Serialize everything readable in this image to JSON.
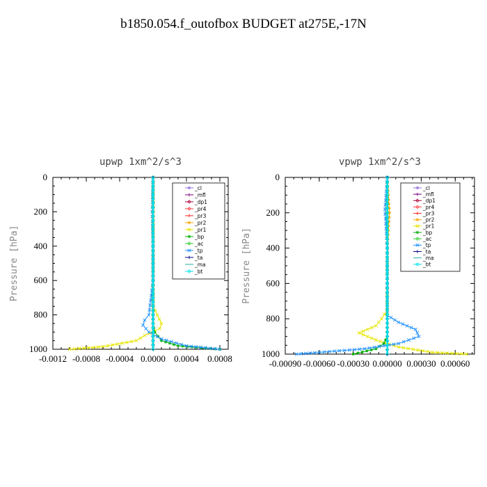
{
  "page": {
    "title": "b1850.054.f_outofbox  BUDGET at275E,-17N"
  },
  "chart_data": [
    {
      "type": "line",
      "title": "upwp  1xm^2/s^3",
      "ylabel": "Pressure [hPa]",
      "xlim": [
        -0.0012,
        0.0009
      ],
      "ylim": [
        0,
        1000
      ],
      "y_inverted": true,
      "xticks": [
        -0.0012,
        -0.0008,
        -0.0004,
        0.0,
        0.0004,
        0.0008
      ],
      "xtick_labels": [
        "-0.0012",
        "-0.0008",
        "-0.0004",
        "0.0000",
        "0.0004",
        "0.0008"
      ],
      "yticks": [
        0,
        200,
        400,
        600,
        800,
        1000
      ],
      "ytick_labels": [
        "0",
        "200",
        "400",
        "600",
        "800",
        "1000"
      ],
      "legend_position": "top-right",
      "series": [
        {
          "name": "_cl",
          "color": "#9370db",
          "marker": "star",
          "x": [
            0,
            0,
            0,
            0,
            0,
            0,
            0,
            0,
            0,
            0,
            0,
            0,
            0
          ],
          "y": [
            0,
            100,
            200,
            300,
            400,
            500,
            600,
            700,
            800,
            850,
            900,
            950,
            1000
          ]
        },
        {
          "name": "_mfl",
          "color": "#800080",
          "marker": "plus",
          "x": [
            0,
            0,
            0,
            0,
            0,
            0,
            0,
            0,
            0,
            0,
            0,
            0,
            0
          ],
          "y": [
            0,
            100,
            200,
            300,
            400,
            500,
            600,
            700,
            800,
            850,
            900,
            950,
            1000
          ]
        },
        {
          "name": "_dp1",
          "color": "#b0003a",
          "marker": "diamond",
          "x": [
            0,
            0,
            0,
            0,
            0,
            0,
            0,
            0,
            0,
            0,
            0,
            0,
            0
          ],
          "y": [
            0,
            100,
            200,
            300,
            400,
            500,
            600,
            700,
            800,
            850,
            900,
            950,
            1000
          ]
        },
        {
          "name": "_pr4",
          "color": "#ff4040",
          "marker": "diamond",
          "x": [
            0,
            0,
            0,
            0,
            0,
            0,
            0,
            0,
            0,
            0,
            0,
            0,
            0
          ],
          "y": [
            0,
            100,
            200,
            300,
            400,
            500,
            600,
            700,
            800,
            850,
            900,
            950,
            1000
          ]
        },
        {
          "name": "_pr3",
          "color": "#ff2020",
          "marker": "plus",
          "x": [
            0,
            0,
            0,
            0,
            0,
            0,
            0,
            0,
            0,
            0,
            0,
            0,
            0
          ],
          "y": [
            0,
            100,
            200,
            300,
            400,
            500,
            600,
            700,
            800,
            850,
            900,
            950,
            1000
          ]
        },
        {
          "name": "_pr2",
          "color": "#ffa500",
          "marker": "star",
          "x": [
            0,
            0,
            0,
            0,
            0,
            0,
            0,
            0,
            0,
            0,
            0,
            0,
            0
          ],
          "y": [
            0,
            100,
            200,
            300,
            400,
            500,
            600,
            700,
            800,
            850,
            900,
            950,
            1000
          ]
        },
        {
          "name": "_pr1",
          "color": "#e6e600",
          "marker": "x",
          "x": [
            0,
            0,
            0,
            0,
            0,
            5e-05,
            0.0001,
            8e-05,
            -0.0001,
            -0.0002,
            -0.0006,
            -0.001
          ],
          "y": [
            0,
            200,
            400,
            600,
            750,
            800,
            850,
            880,
            920,
            950,
            985,
            1000
          ]
        },
        {
          "name": "_bp",
          "color": "#00b000",
          "marker": "star",
          "x": [
            0,
            0,
            0,
            0,
            0,
            0,
            2e-05,
            0.0001,
            0.0003,
            0.0008
          ],
          "y": [
            0,
            200,
            400,
            600,
            800,
            850,
            900,
            950,
            980,
            1000
          ]
        },
        {
          "name": "_ac",
          "color": "#30d030",
          "marker": "diamond",
          "x": [
            0,
            0,
            0,
            0,
            0,
            0,
            0,
            0,
            0,
            0,
            0,
            0,
            0
          ],
          "y": [
            0,
            100,
            200,
            300,
            400,
            500,
            600,
            700,
            800,
            850,
            900,
            950,
            1000
          ]
        },
        {
          "name": "_tp",
          "color": "#1e90ff",
          "marker": "x",
          "x": [
            0,
            -1e-05,
            0,
            0,
            -5e-05,
            -0.0001,
            -0.00012,
            -5e-05,
            0.0001,
            0.0004,
            0.0008
          ],
          "y": [
            0,
            200,
            400,
            600,
            800,
            830,
            860,
            900,
            940,
            980,
            1000
          ]
        },
        {
          "name": "_ta",
          "color": "#000080",
          "marker": "plus",
          "x": [
            0,
            0,
            0,
            0,
            0,
            0,
            0,
            0,
            0,
            0,
            0,
            0,
            0
          ],
          "y": [
            0,
            100,
            200,
            300,
            400,
            500,
            600,
            700,
            800,
            850,
            900,
            950,
            1000
          ]
        },
        {
          "name": "_ma",
          "color": "#20b2aa",
          "marker": "none",
          "x": [
            0,
            0,
            0,
            0,
            0,
            0,
            0,
            0,
            0,
            0,
            0,
            0,
            0
          ],
          "y": [
            0,
            100,
            200,
            300,
            400,
            500,
            600,
            700,
            800,
            850,
            900,
            950,
            1000
          ]
        },
        {
          "name": "_bt",
          "color": "#00e5ee",
          "marker": "diamond",
          "x": [
            0,
            0,
            0,
            0,
            0,
            0,
            0,
            0,
            0,
            0,
            0,
            0,
            0
          ],
          "y": [
            0,
            100,
            200,
            300,
            400,
            500,
            600,
            700,
            800,
            850,
            900,
            950,
            1000
          ]
        }
      ]
    },
    {
      "type": "line",
      "title": "vpwp  1xm^2/s^3",
      "ylabel": "Pressure [hPa]",
      "xlim": [
        -0.0009,
        0.00077
      ],
      "ylim": [
        0,
        1000
      ],
      "y_inverted": true,
      "xticks": [
        -0.0009,
        -0.0006,
        -0.0003,
        0.0,
        0.0003,
        0.0006
      ],
      "xtick_labels": [
        "-0.00090",
        "-0.00060",
        "-0.00030",
        "0.00000",
        "0.00030",
        "0.00060"
      ],
      "yticks": [
        0,
        200,
        400,
        600,
        800,
        1000
      ],
      "ytick_labels": [
        "0",
        "200",
        "400",
        "600",
        "800",
        "1000"
      ],
      "legend_position": "top-right",
      "series": [
        {
          "name": "_cl",
          "color": "#9370db",
          "marker": "star",
          "x": [
            0,
            0,
            0,
            0,
            0,
            0,
            0,
            0,
            0,
            0,
            0,
            0,
            0
          ],
          "y": [
            0,
            100,
            200,
            300,
            400,
            500,
            600,
            700,
            800,
            850,
            900,
            950,
            1000
          ]
        },
        {
          "name": "_mfl",
          "color": "#800080",
          "marker": "plus",
          "x": [
            0,
            0,
            0,
            0,
            0,
            0,
            0,
            0,
            0,
            0,
            0,
            0,
            0
          ],
          "y": [
            0,
            100,
            200,
            300,
            400,
            500,
            600,
            700,
            800,
            850,
            900,
            950,
            1000
          ]
        },
        {
          "name": "_dp1",
          "color": "#b0003a",
          "marker": "diamond",
          "x": [
            0,
            0,
            0,
            0,
            0,
            0,
            0,
            0,
            0,
            0,
            0,
            0,
            0
          ],
          "y": [
            0,
            100,
            200,
            300,
            400,
            500,
            600,
            700,
            800,
            850,
            900,
            950,
            1000
          ]
        },
        {
          "name": "_pr4",
          "color": "#ff4040",
          "marker": "diamond",
          "x": [
            0,
            0,
            0,
            0,
            0,
            0,
            0,
            0,
            0,
            0,
            0,
            0,
            0
          ],
          "y": [
            0,
            100,
            200,
            300,
            400,
            500,
            600,
            700,
            800,
            850,
            900,
            950,
            1000
          ]
        },
        {
          "name": "_pr3",
          "color": "#ff2020",
          "marker": "plus",
          "x": [
            0,
            0,
            0,
            0,
            0,
            0,
            0,
            0,
            0,
            0,
            0,
            0,
            0
          ],
          "y": [
            0,
            100,
            200,
            300,
            400,
            500,
            600,
            700,
            800,
            850,
            900,
            950,
            1000
          ]
        },
        {
          "name": "_pr2",
          "color": "#ffa500",
          "marker": "star",
          "x": [
            0,
            1e-05,
            2e-05,
            1e-05,
            0,
            0,
            0,
            0,
            0,
            0,
            0,
            0,
            0
          ],
          "y": [
            0,
            100,
            200,
            300,
            400,
            500,
            600,
            700,
            800,
            850,
            900,
            950,
            1000
          ]
        },
        {
          "name": "_pr1",
          "color": "#e6e600",
          "marker": "x",
          "x": [
            0,
            0,
            0,
            0,
            0,
            -5e-05,
            -0.0001,
            -0.00025,
            -0.0001,
            0.0001,
            0.0004,
            0.0007
          ],
          "y": [
            0,
            200,
            400,
            600,
            750,
            800,
            840,
            880,
            920,
            960,
            990,
            1000
          ]
        },
        {
          "name": "_bp",
          "color": "#00b000",
          "marker": "star",
          "x": [
            0,
            0,
            0,
            0,
            0,
            0,
            0,
            -3e-05,
            -0.0001,
            -0.0003
          ],
          "y": [
            0,
            200,
            400,
            600,
            800,
            850,
            900,
            940,
            970,
            1000
          ]
        },
        {
          "name": "_ac",
          "color": "#30d030",
          "marker": "diamond",
          "x": [
            0,
            0,
            0,
            0,
            0,
            0,
            0,
            0,
            0,
            0,
            0,
            0,
            0
          ],
          "y": [
            0,
            100,
            200,
            300,
            400,
            500,
            600,
            700,
            800,
            850,
            900,
            950,
            1000
          ]
        },
        {
          "name": "_tp",
          "color": "#1e90ff",
          "marker": "x",
          "x": [
            0,
            -2e-05,
            0,
            0,
            0,
            0.0001,
            0.00025,
            0.00028,
            0.0001,
            -0.0002,
            -0.0006,
            -0.0008
          ],
          "y": [
            0,
            180,
            400,
            600,
            780,
            820,
            860,
            900,
            940,
            970,
            990,
            1000
          ]
        },
        {
          "name": "_ta",
          "color": "#000080",
          "marker": "plus",
          "x": [
            0,
            0,
            0,
            0,
            0,
            0,
            0,
            0,
            0,
            0,
            0,
            0,
            0
          ],
          "y": [
            0,
            100,
            200,
            300,
            400,
            500,
            600,
            700,
            800,
            850,
            900,
            950,
            1000
          ]
        },
        {
          "name": "_ma",
          "color": "#20b2aa",
          "marker": "none",
          "x": [
            0,
            0,
            0,
            0,
            0,
            0,
            0,
            0,
            0,
            0,
            0,
            0,
            0
          ],
          "y": [
            0,
            100,
            200,
            300,
            400,
            500,
            600,
            700,
            800,
            850,
            900,
            950,
            1000
          ]
        },
        {
          "name": "_bt",
          "color": "#00e5ee",
          "marker": "diamond",
          "x": [
            0,
            0,
            0,
            0,
            0,
            0,
            0,
            0,
            0,
            0,
            0,
            0,
            0
          ],
          "y": [
            0,
            100,
            200,
            300,
            400,
            500,
            600,
            700,
            800,
            850,
            900,
            950,
            1000
          ]
        }
      ]
    }
  ]
}
